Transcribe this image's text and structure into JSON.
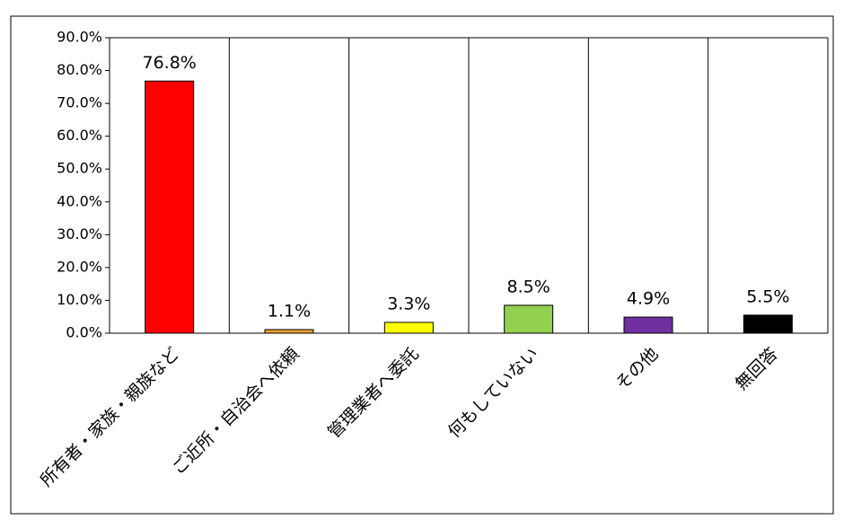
{
  "chart_data": {
    "type": "bar",
    "categories": [
      "所有者・家族・親族など",
      "ご近所・自治会へ依頼",
      "管理業者へ委託",
      "何もしていない",
      "その他",
      "無回答"
    ],
    "values": [
      76.8,
      1.1,
      3.3,
      8.5,
      4.9,
      5.5
    ],
    "value_labels": [
      "76.8%",
      "1.1%",
      "3.3%",
      "8.5%",
      "4.9%",
      "5.5%"
    ],
    "colors": [
      "#ff0000",
      "#f0a030",
      "#ffff00",
      "#92d050",
      "#7030a0",
      "#000000"
    ],
    "ylim": [
      0,
      90
    ],
    "yticks": [
      {
        "value": 0,
        "label": "0.0%"
      },
      {
        "value": 10,
        "label": "10.0%"
      },
      {
        "value": 20,
        "label": "20.0%"
      },
      {
        "value": 30,
        "label": "30.0%"
      },
      {
        "value": 40,
        "label": "40.0%"
      },
      {
        "value": 50,
        "label": "50.0%"
      },
      {
        "value": 60,
        "label": "60.0%"
      },
      {
        "value": 70,
        "label": "70.0%"
      },
      {
        "value": 80,
        "label": "80.0%"
      },
      {
        "value": 90,
        "label": "90.0%"
      }
    ]
  }
}
